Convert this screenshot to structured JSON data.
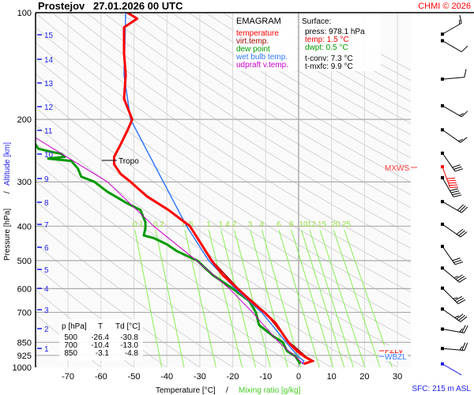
{
  "header": {
    "station": "Prostejov",
    "datetime": "27.01.2026 00 UTC",
    "copyright": "CHMI © 2026"
  },
  "legend": {
    "title": "EMAGRAM",
    "items": [
      {
        "label": "temperature",
        "color": "#ff0000"
      },
      {
        "label": "virt.temp.",
        "color": "#a00000"
      },
      {
        "label": "dew point",
        "color": "#009900"
      },
      {
        "label": "wet bulb temp.",
        "color": "#3377ff"
      },
      {
        "label": "udpraft v.temp.",
        "color": "#cc00cc"
      }
    ]
  },
  "surface": {
    "title": "Surface:",
    "press": "press: 978.1 hPa",
    "temp": "temp: 1.5 °C",
    "dwpt": "dwpt: 0.5 °C",
    "tconv": "t-conv: 7.3 °C",
    "tmxfc": "t-mxfc: 9.9 °C"
  },
  "table": {
    "headers": [
      "p [hPa]",
      "T",
      "Td [°C]"
    ],
    "rows": [
      [
        "500",
        "-26.4",
        "-30.8"
      ],
      [
        "700",
        "-10.4",
        "-13.0"
      ],
      [
        "850",
        "-3.1",
        "-4.8"
      ]
    ]
  },
  "labels": {
    "tropo": "Tropo",
    "mxws": "MXWS",
    "fzlv": "FZLV",
    "wbzl": "WBZL",
    "sfc": "SFC: 215 m ASL"
  },
  "chart_data": {
    "type": "line",
    "title": "EMAGRAM",
    "xlabel": "Temperature [°C]",
    "xlabel2": "Mixing ratio [g/kg]",
    "ylabel": "Pressure [hPa]",
    "ylabel2": "Altitude [km]",
    "xlim": [
      -80,
      34
    ],
    "ylim": [
      1000,
      100
    ],
    "y_scale": "log",
    "x_ticks": [
      -70,
      -60,
      -50,
      -40,
      -30,
      -20,
      -10,
      0,
      10,
      20,
      30
    ],
    "y_ticks": [
      100,
      200,
      300,
      400,
      500,
      600,
      700,
      850,
      925,
      1000
    ],
    "altitude_ticks_km": [
      1,
      2,
      3,
      4,
      5,
      6,
      7,
      8,
      9,
      10,
      11,
      12,
      13,
      14,
      15
    ],
    "mixing_ratio_labels": [
      "0.1",
      "0.2",
      "0.5",
      "1",
      "1.4",
      "2",
      "3",
      "4",
      "6",
      "8",
      "10",
      "12",
      "15",
      "20",
      "25"
    ],
    "series": [
      {
        "name": "temperature",
        "color": "#ff0000",
        "points": [
          [
            100,
            -52
          ],
          [
            104,
            -49
          ],
          [
            110,
            -53
          ],
          [
            130,
            -53
          ],
          [
            150,
            -52.5
          ],
          [
            175,
            -53
          ],
          [
            200,
            -50.5
          ],
          [
            215,
            -52
          ],
          [
            235,
            -54
          ],
          [
            255,
            -56
          ],
          [
            268,
            -56
          ],
          [
            285,
            -54
          ],
          [
            300,
            -51
          ],
          [
            330,
            -46
          ],
          [
            360,
            -39.5
          ],
          [
            400,
            -33
          ],
          [
            450,
            -29.5
          ],
          [
            500,
            -26.4
          ],
          [
            550,
            -23
          ],
          [
            600,
            -18.5
          ],
          [
            650,
            -14.5
          ],
          [
            700,
            -10.4
          ],
          [
            750,
            -7
          ],
          [
            800,
            -5
          ],
          [
            850,
            -3.1
          ],
          [
            900,
            -0.5
          ],
          [
            935,
            2
          ],
          [
            960,
            4.2
          ],
          [
            978.1,
            1.5
          ]
        ]
      },
      {
        "name": "virt.temp.",
        "color": "#a00000",
        "points": [
          [
            400,
            -33
          ],
          [
            500,
            -26.3
          ],
          [
            600,
            -18.3
          ],
          [
            700,
            -10.2
          ],
          [
            850,
            -2.8
          ],
          [
            935,
            2.4
          ],
          [
            960,
            4.6
          ],
          [
            978.1,
            2
          ]
        ]
      },
      {
        "name": "dew point",
        "color": "#009900",
        "points": [
          [
            228,
            -81
          ],
          [
            242,
            -79
          ],
          [
            247,
            -75
          ],
          [
            250,
            -72
          ],
          [
            255,
            -71
          ],
          [
            258,
            -76
          ],
          [
            262,
            -69
          ],
          [
            275,
            -67
          ],
          [
            290,
            -66
          ],
          [
            300,
            -62
          ],
          [
            320,
            -58
          ],
          [
            345,
            -52
          ],
          [
            360,
            -48
          ],
          [
            390,
            -46.5
          ],
          [
            405,
            -46.5
          ],
          [
            425,
            -47
          ],
          [
            432,
            -44
          ],
          [
            450,
            -40
          ],
          [
            470,
            -37
          ],
          [
            500,
            -30.8
          ],
          [
            550,
            -26
          ],
          [
            600,
            -20
          ],
          [
            650,
            -15
          ],
          [
            700,
            -13
          ],
          [
            760,
            -12
          ],
          [
            820,
            -7.5
          ],
          [
            850,
            -4.8
          ],
          [
            900,
            -3.5
          ],
          [
            930,
            -1
          ],
          [
            978.1,
            0.5
          ]
        ]
      },
      {
        "name": "wet bulb temp.",
        "color": "#3377ff",
        "points": [
          [
            100,
            -52.5
          ],
          [
            150,
            -53
          ],
          [
            200,
            -51
          ],
          [
            400,
            -34
          ],
          [
            500,
            -27.3
          ],
          [
            600,
            -19.2
          ],
          [
            700,
            -11.2
          ],
          [
            850,
            -3.8
          ],
          [
            935,
            0
          ],
          [
            960,
            1.6
          ],
          [
            978.1,
            1
          ]
        ]
      },
      {
        "name": "udpraft v.temp.",
        "color": "#cc00cc",
        "points": [
          [
            225,
            -80
          ],
          [
            300,
            -58
          ],
          [
            400,
            -44
          ],
          [
            500,
            -31
          ],
          [
            600,
            -21
          ],
          [
            700,
            -14
          ],
          [
            850,
            -6
          ],
          [
            978.1,
            1.5
          ]
        ]
      }
    ],
    "tropopause_hPa": 268,
    "wind_barbs": [
      {
        "p": 115,
        "dir": 300,
        "kt": 15
      },
      {
        "p": 120,
        "dir": 240,
        "kt": 10
      },
      {
        "p": 154,
        "dir": 275,
        "kt": 10
      },
      {
        "p": 183,
        "dir": 240,
        "kt": 15
      },
      {
        "p": 214,
        "dir": 235,
        "kt": 15
      },
      {
        "p": 249,
        "dir": 215,
        "kt": 30
      },
      {
        "p": 272,
        "dir": 200,
        "kt": 50,
        "max": true
      },
      {
        "p": 292,
        "dir": 210,
        "kt": 40
      },
      {
        "p": 341,
        "dir": 240,
        "kt": 30
      },
      {
        "p": 395,
        "dir": 235,
        "kt": 30
      },
      {
        "p": 456,
        "dir": 215,
        "kt": 30
      },
      {
        "p": 525,
        "dir": 230,
        "kt": 35
      },
      {
        "p": 598,
        "dir": 225,
        "kt": 35
      },
      {
        "p": 685,
        "dir": 235,
        "kt": 35
      },
      {
        "p": 780,
        "dir": 260,
        "kt": 25
      },
      {
        "p": 885,
        "dir": 265,
        "kt": 25
      },
      {
        "p": 978,
        "dir": 240,
        "kt": 0,
        "surface": true
      }
    ]
  }
}
